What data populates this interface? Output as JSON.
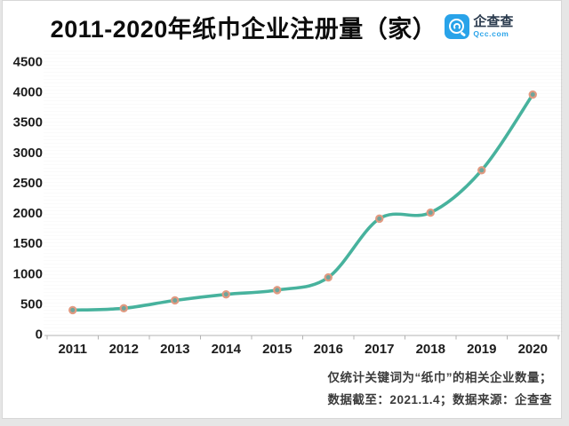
{
  "page": {
    "background_color": "#e6e6e6",
    "card_color": "#ffffff"
  },
  "header": {
    "title": "2011-2020年纸巾企业注册量（家）",
    "logo": {
      "name": "企查查",
      "domain": "Qcc.com",
      "brand_color": "#29a3e9"
    }
  },
  "chart_data": {
    "type": "line",
    "title": "2011-2020年纸巾企业注册量（家）",
    "categories": [
      "2011",
      "2012",
      "2013",
      "2014",
      "2015",
      "2016",
      "2017",
      "2018",
      "2019",
      "2020"
    ],
    "values": [
      390,
      420,
      550,
      650,
      720,
      930,
      1900,
      2000,
      2700,
      3950
    ],
    "xlabel": "",
    "ylabel": "",
    "ylim": [
      0,
      4500
    ],
    "ytick_step": 500,
    "grid": false,
    "legend": "none",
    "smooth": true,
    "line_color": "#47b29d",
    "marker_fill": "#6fa49b",
    "marker_ring_color": "#e19a81",
    "axis_color": "#b3b3b3",
    "tick_label_color": "#1c1c1c"
  },
  "footer": {
    "note_line1": "仅统计关键词为“纸巾”的相关企业数量；",
    "note_line2": "数据截至：2021.1.4；数据来源：企查查"
  }
}
